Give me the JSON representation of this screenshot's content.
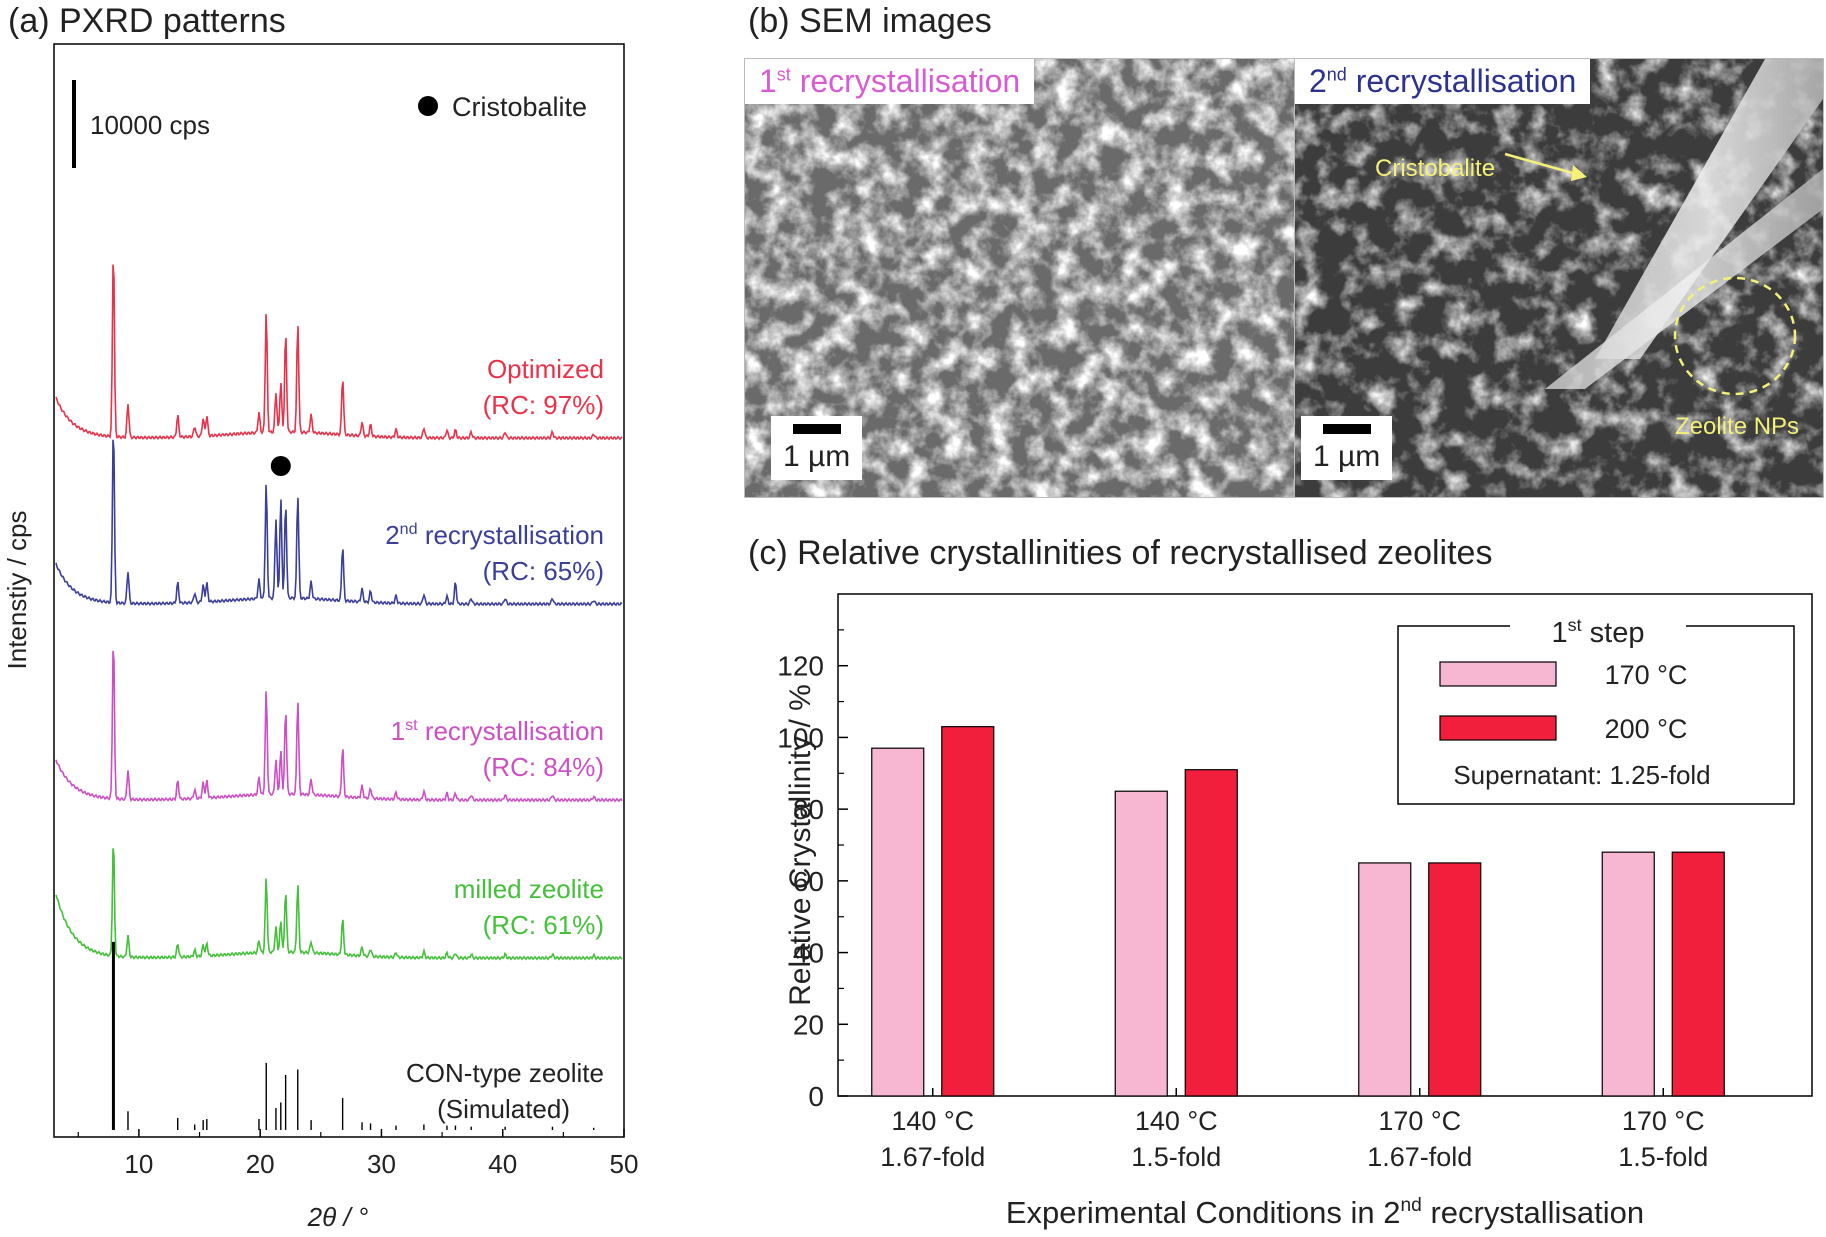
{
  "panels": {
    "a_title": "(a) PXRD patterns",
    "b_title": "(b) SEM images",
    "c_title": "(c) Relative crystallinities of recrystallised zeolites"
  },
  "xrd": {
    "ylabel": "Intenstiy / cps",
    "xlabel": "2θ / °",
    "xlim": [
      3,
      50
    ],
    "xticks": [
      10,
      20,
      30,
      40,
      50
    ],
    "scale_bar_label": "10000 cps",
    "legend_marker_label": "Cristobalite",
    "traces": [
      {
        "line1": "Optimized",
        "line2": "(RC: 97%)",
        "color": "#e8324a"
      },
      {
        "line1_pre": "2",
        "line1_sup": "nd",
        "line1_post": " recrystallisation",
        "line2": "(RC: 65%)",
        "color": "#3b3f9a"
      },
      {
        "line1_pre": "1",
        "line1_sup": "st",
        "line1_post": " recrystallisation",
        "line2": "(RC: 84%)",
        "color": "#cc4fc4"
      },
      {
        "line1": "milled zeolite",
        "line2": "(RC: 61%)",
        "color": "#44c03a"
      }
    ],
    "simulated": {
      "line1": "CON-type zeolite",
      "line2": "(Simulated)",
      "color": "#000000"
    },
    "peaks_2theta": [
      7.9,
      9.1,
      13.2,
      14.6,
      15.3,
      15.6,
      19.9,
      20.5,
      21.3,
      21.7,
      22.1,
      23.1,
      24.2,
      26.8,
      28.4,
      29.1,
      31.2,
      33.5,
      35.4,
      36.1,
      37.4,
      40.2,
      44.1,
      47.5
    ],
    "cristobalite_peak_2theta": 21.7
  },
  "sem": {
    "img1": {
      "label_pre": "1",
      "label_sup": "st",
      "label_post": " recrystallisation",
      "label_color": "#d75bd3",
      "scale": "1 µm"
    },
    "img2": {
      "label_pre": "2",
      "label_sup": "nd",
      "label_post": " recrystallisation",
      "label_color": "#2c3290",
      "scale": "1 µm",
      "ann_cristobalite": "Cristobalite",
      "ann_zeolite": "Zeolite NPs"
    }
  },
  "chart_data": {
    "type": "bar",
    "title": "(c) Relative crystallinities of recrystallised zeolites",
    "ylabel": "Relative Crystallinity / %",
    "xlabel_pre": "Experimental Conditions in 2",
    "xlabel_sup": "nd",
    "xlabel_post": " recrystallisation",
    "ylim": [
      0,
      140
    ],
    "yticks": [
      0,
      20,
      40,
      60,
      80,
      100,
      120
    ],
    "categories": [
      [
        "140 °C",
        "1.67-fold"
      ],
      [
        "140 °C",
        "1.5-fold"
      ],
      [
        "170 °C",
        "1.67-fold"
      ],
      [
        "170 °C",
        "1.5-fold"
      ]
    ],
    "series": [
      {
        "name": "170 °C",
        "color": "#f7b6d2",
        "values": [
          97,
          85,
          65,
          68
        ]
      },
      {
        "name": "200 °C",
        "color": "#f21f3c",
        "values": [
          103,
          91,
          65,
          68
        ]
      }
    ],
    "legend": {
      "title_pre": "1",
      "title_sup": "st",
      "title_post": " step",
      "note": "Supernatant: 1.25-fold",
      "placement": "top-right"
    }
  }
}
